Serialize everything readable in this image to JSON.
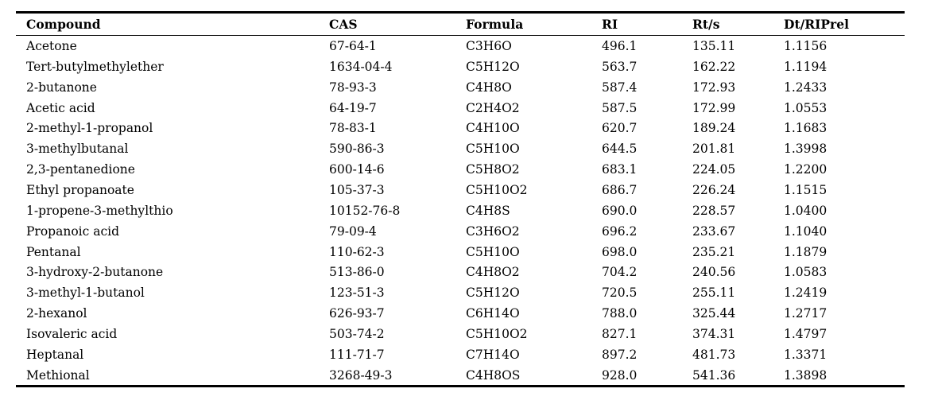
{
  "table": {
    "headers": [
      "Compound",
      "CAS",
      "Formula",
      "RI",
      "Rt/s",
      "Dt/RIPrel"
    ],
    "rows": [
      [
        "Acetone",
        "67-64-1",
        "C3H6O",
        "496.1",
        "135.11",
        "1.1156"
      ],
      [
        "Tert-butylmethylether",
        "1634-04-4",
        "C5H12O",
        "563.7",
        "162.22",
        "1.1194"
      ],
      [
        "2-butanone",
        "78-93-3",
        "C4H8O",
        "587.4",
        "172.93",
        "1.2433"
      ],
      [
        "Acetic acid",
        "64-19-7",
        "C2H4O2",
        "587.5",
        "172.99",
        "1.0553"
      ],
      [
        "2-methyl-1-propanol",
        "78-83-1",
        "C4H10O",
        "620.7",
        "189.24",
        "1.1683"
      ],
      [
        "3-methylbutanal",
        "590-86-3",
        "C5H10O",
        "644.5",
        "201.81",
        "1.3998"
      ],
      [
        "2,3-pentanedione",
        "600-14-6",
        "C5H8O2",
        "683.1",
        "224.05",
        "1.2200"
      ],
      [
        "Ethyl propanoate",
        "105-37-3",
        "C5H10O2",
        "686.7",
        "226.24",
        "1.1515"
      ],
      [
        "1-propene-3-methylthio",
        "10152-76-8",
        "C4H8S",
        "690.0",
        "228.57",
        "1.0400"
      ],
      [
        "Propanoic acid",
        "79-09-4",
        "C3H6O2",
        "696.2",
        "233.67",
        "1.1040"
      ],
      [
        "Pentanal",
        "110-62-3",
        "C5H10O",
        "698.0",
        "235.21",
        "1.1879"
      ],
      [
        "3-hydroxy-2-butanone",
        "513-86-0",
        "C4H8O2",
        "704.2",
        "240.56",
        "1.0583"
      ],
      [
        "3-methyl-1-butanol",
        "123-51-3",
        "C5H12O",
        "720.5",
        "255.11",
        "1.2419"
      ],
      [
        "2-hexanol",
        "626-93-7",
        "C6H14O",
        "788.0",
        "325.44",
        "1.2717"
      ],
      [
        "Isovaleric acid",
        "503-74-2",
        "C5H10O2",
        "827.1",
        "374.31",
        "1.4797"
      ],
      [
        "Heptanal",
        "111-71-7",
        "C7H14O",
        "897.2",
        "481.73",
        "1.3371"
      ],
      [
        "Methional",
        "3268-49-3",
        "C4H8OS",
        "928.0",
        "541.36",
        "1.3898"
      ]
    ]
  }
}
